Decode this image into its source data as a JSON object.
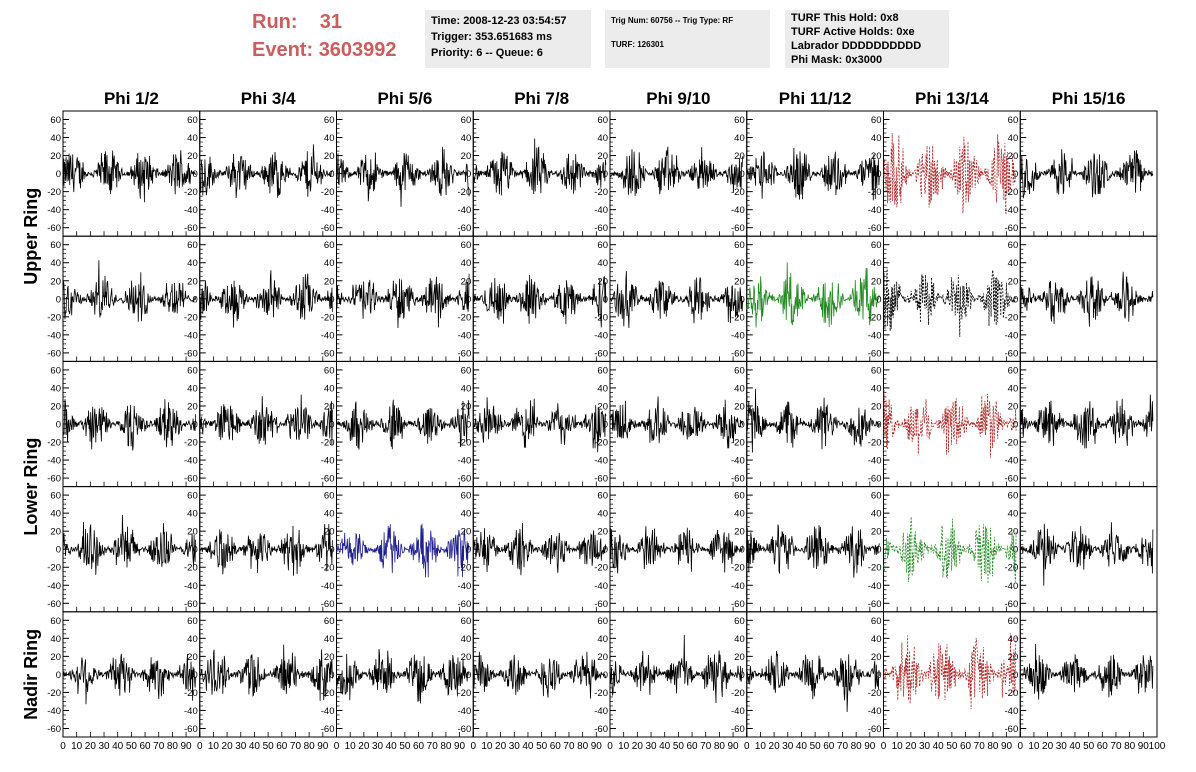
{
  "header": {
    "run_label": "Run:",
    "run_value": "31",
    "event_label": "Event:",
    "event_value": "3603992",
    "time": "Time: 2008-12-23 03:54:57",
    "trigger": "Trigger: 353.651683 ms",
    "priority": "Priority: 6 -- Queue: 6",
    "trig_num": "Trig Num: 60756 -- Trig Type: RF",
    "turf": "TURF: 126301",
    "turf_this_hold": "TURF This Hold: 0x8",
    "turf_active_holds": "TURF Active Holds: 0xe",
    "labrador": "Labrador DDDDDDDDDD",
    "phi_mask": "Phi Mask: 0x3000"
  },
  "colors": {
    "run_text": "#cd5c5c",
    "info_bg": "#ececec",
    "trace_default": "#000000"
  },
  "chart_data": {
    "type": "line",
    "columns": [
      "Phi 1/2",
      "Phi 3/4",
      "Phi 5/6",
      "Phi 7/8",
      "Phi 9/10",
      "Phi 11/12",
      "Phi 13/14",
      "Phi 15/16"
    ],
    "row_groups": [
      {
        "label": "Upper Ring",
        "rows": [
          0,
          1
        ]
      },
      {
        "label": "Lower Ring",
        "rows": [
          2,
          3
        ]
      },
      {
        "label": "Nadir Ring",
        "rows": [
          4
        ]
      }
    ],
    "ylim": [
      -65,
      65
    ],
    "yticks": [
      -60,
      -40,
      -20,
      0,
      20,
      40,
      60
    ],
    "ytick_labels": [
      "-60",
      "-40",
      "-20",
      "0",
      "20",
      "40",
      "60"
    ],
    "xlim": [
      0,
      100
    ],
    "xticks": [
      0,
      10,
      20,
      30,
      40,
      50,
      60,
      70,
      80,
      90,
      100
    ],
    "xtick_labels": [
      "0",
      "10",
      "20",
      "30",
      "40",
      "50",
      "60",
      "70",
      "80",
      "90",
      "100"
    ],
    "trace_x_range": [
      0,
      97
    ],
    "samples_per_trace": 260,
    "special_traces": [
      {
        "row": 0,
        "col": 6,
        "color": "#b22222",
        "style": "dashed",
        "amplitude": 55
      },
      {
        "row": 1,
        "col": 5,
        "color": "#228b22",
        "style": "solid",
        "amplitude": 40
      },
      {
        "row": 1,
        "col": 6,
        "color": "#000000",
        "style": "dashed",
        "amplitude": 45
      },
      {
        "row": 2,
        "col": 6,
        "color": "#b22222",
        "style": "dashed",
        "amplitude": 45
      },
      {
        "row": 3,
        "col": 2,
        "color": "#1f1f8f",
        "style": "solid",
        "amplitude": 35
      },
      {
        "row": 3,
        "col": 6,
        "color": "#228b22",
        "style": "dashed",
        "amplitude": 45
      },
      {
        "row": 4,
        "col": 6,
        "color": "#b22222",
        "style": "dashed",
        "amplitude": 55
      }
    ],
    "default_amplitude": 35
  }
}
